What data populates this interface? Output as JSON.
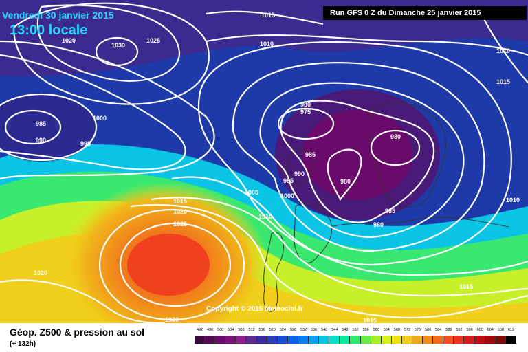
{
  "header": {
    "date": "Vendredi 30 janvier 2015",
    "time": "13:00 locale",
    "run": "Run GFS 0 Z du Dimanche 25 janvier 2015"
  },
  "copyright": "Copyright © 2015 Meteociel.fr",
  "footer": {
    "title": "Géop. Z500 & pression au sol",
    "subtitle": "(+ 132h)"
  },
  "isobar_labels": [
    "1015",
    "1020",
    "1030",
    "1025",
    "1010",
    "1010",
    "1015",
    "985",
    "990",
    "1000",
    "995",
    "980",
    "975",
    "980",
    "985",
    "990",
    "995",
    "1000",
    "980",
    "985",
    "980",
    "1005",
    "1010",
    "1015",
    "1020",
    "1025",
    "1020",
    "1030",
    "1015",
    "1010",
    "1015"
  ],
  "scale": {
    "values": [
      "492",
      "496",
      "500",
      "504",
      "508",
      "512",
      "516",
      "520",
      "524",
      "528",
      "532",
      "536",
      "540",
      "544",
      "548",
      "552",
      "556",
      "560",
      "564",
      "568",
      "572",
      "576",
      "580",
      "584",
      "588",
      "592",
      "596",
      "600",
      "604",
      "608",
      "612"
    ],
    "colors": [
      "#3a0a3a",
      "#520a52",
      "#6a0a6a",
      "#7a1478",
      "#8a1e8a",
      "#5a2a8e",
      "#3c2aa0",
      "#2a3ab8",
      "#1a4ed0",
      "#0a62e6",
      "#0a80f0",
      "#0aa2f0",
      "#0ac4e6",
      "#0ae0c8",
      "#0ae89a",
      "#2ee870",
      "#6aec46",
      "#a6f02a",
      "#d6f01e",
      "#f0e01a",
      "#f0c81a",
      "#f0a81a",
      "#f08c1a",
      "#f06e1a",
      "#f0501e",
      "#e8341e",
      "#d41c1c",
      "#bc0e0e",
      "#a00a0a",
      "#7a0a0a",
      "#000000"
    ]
  },
  "colors": {
    "label_cyan": "#27d6ff",
    "isobar": "#ffffff"
  }
}
